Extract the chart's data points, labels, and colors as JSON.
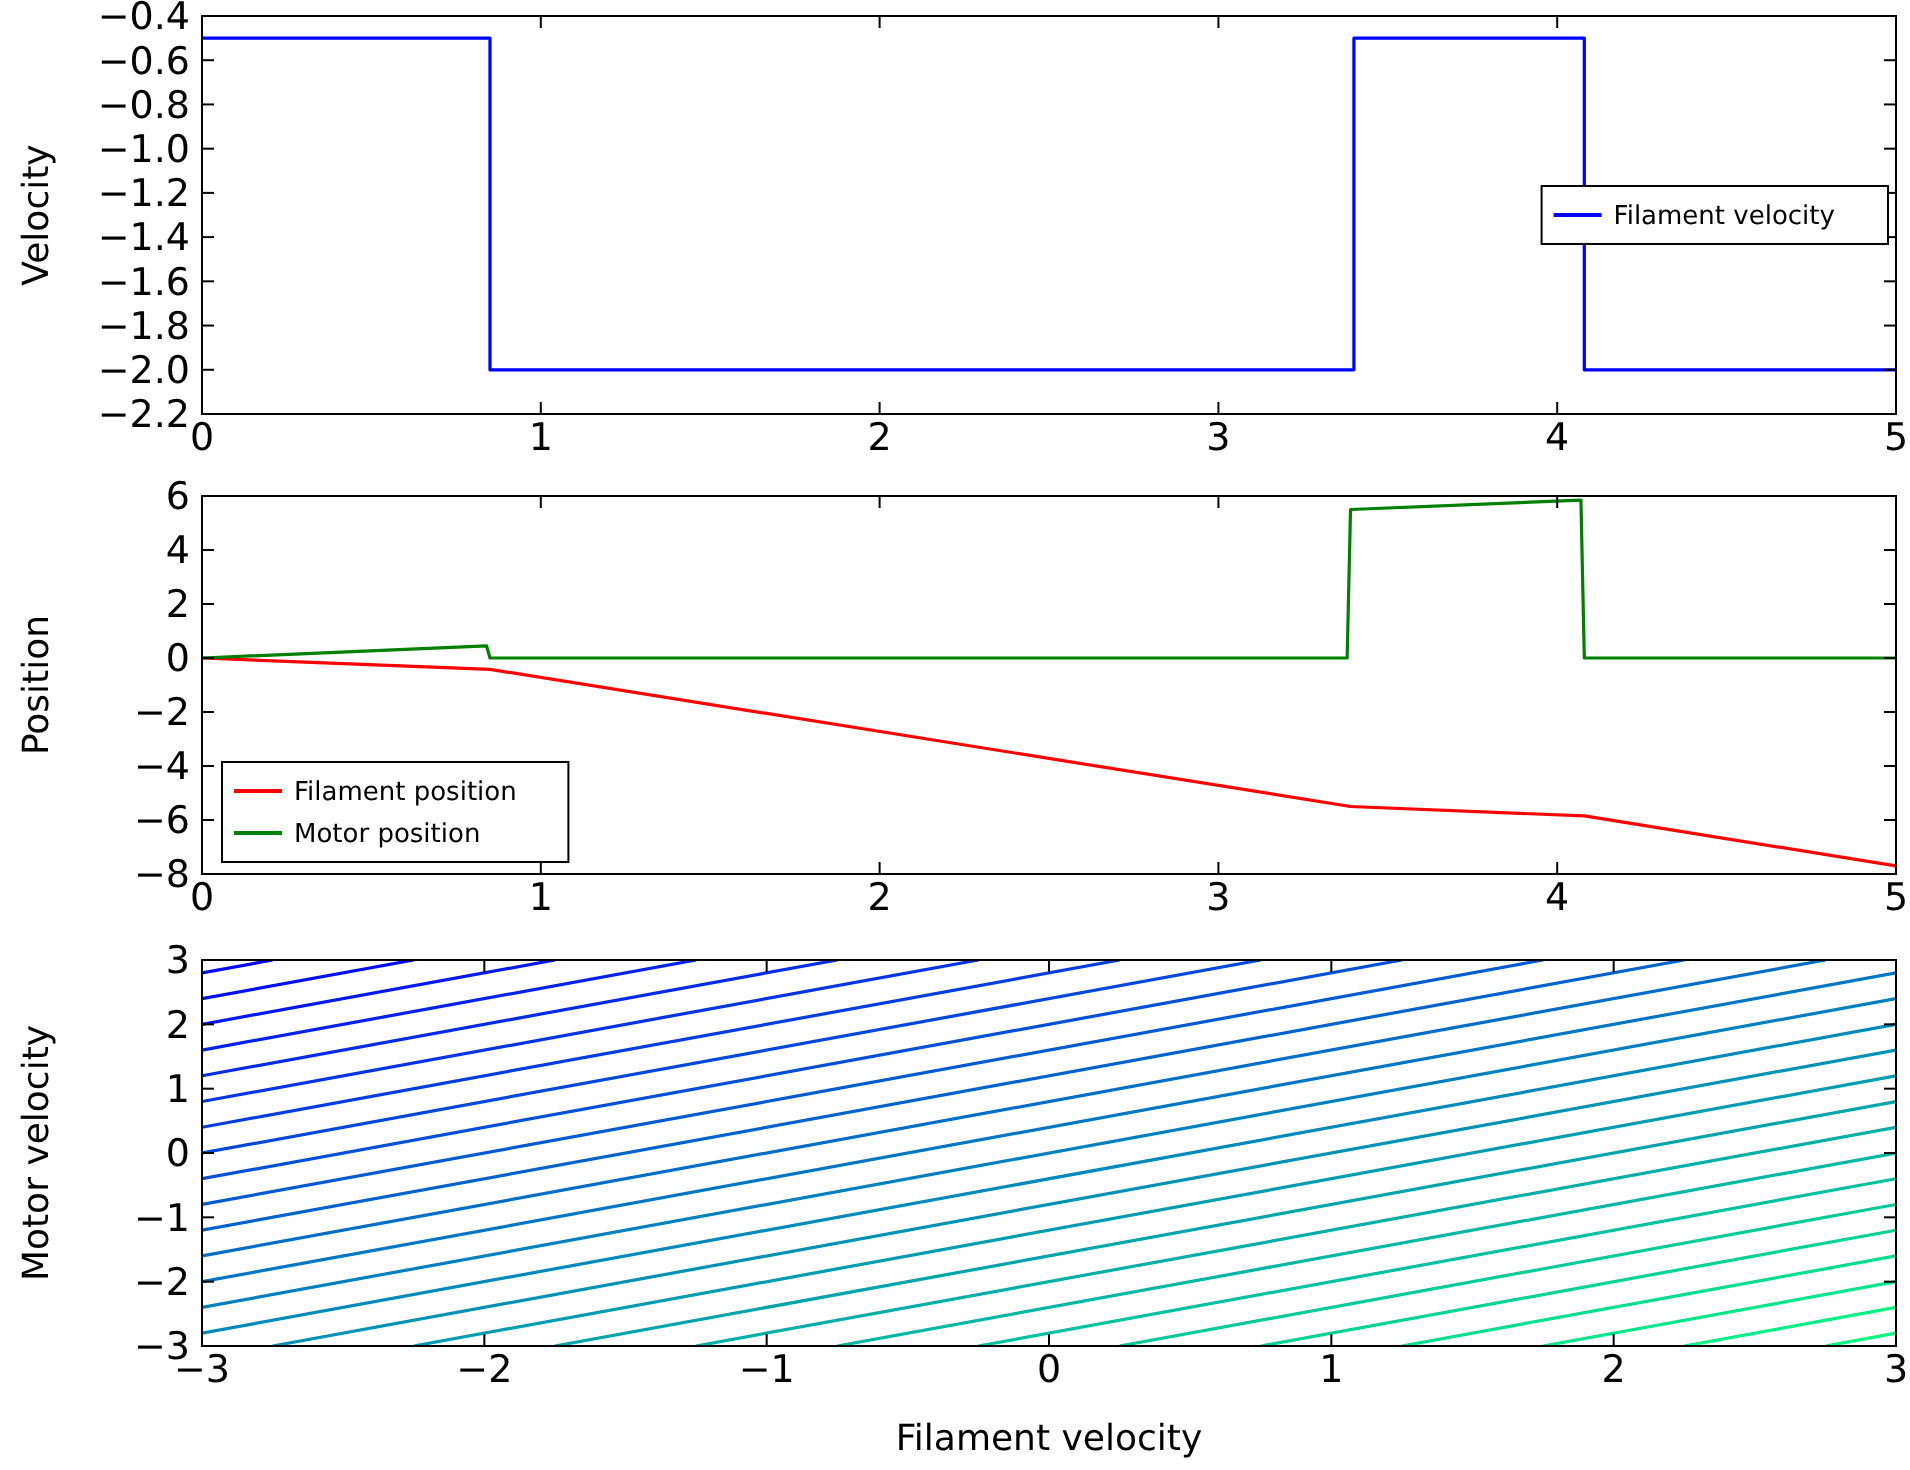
{
  "chart_data": [
    {
      "type": "step",
      "ylabel": "Velocity",
      "xlim": [
        0,
        5
      ],
      "xticks": [
        0,
        1,
        2,
        3,
        4,
        5
      ],
      "ylim": [
        -2.2,
        -0.4
      ],
      "yticks": [
        {
          "value": -0.4,
          "label": "−0.4"
        },
        {
          "value": -0.6,
          "label": "−0.6"
        },
        {
          "value": -0.8,
          "label": "−0.8"
        },
        {
          "value": -1.0,
          "label": "−1.0"
        },
        {
          "value": -1.2,
          "label": "−1.2"
        },
        {
          "value": -1.4,
          "label": "−1.4"
        },
        {
          "value": -1.6,
          "label": "−1.6"
        },
        {
          "value": -1.8,
          "label": "−1.8"
        },
        {
          "value": -2.0,
          "label": "−2.0"
        },
        {
          "value": -2.2,
          "label": "−2.2"
        }
      ],
      "legend": "right",
      "series": [
        {
          "name": "Filament velocity",
          "color": "#0000ff",
          "x": [
            0,
            0.85,
            3.4,
            4.08,
            5
          ],
          "values": [
            -0.5,
            -2.0,
            -0.5,
            -2.0,
            -2.0
          ]
        }
      ]
    },
    {
      "type": "line",
      "ylabel": "Position",
      "xlim": [
        0,
        5
      ],
      "xticks": [
        0,
        1,
        2,
        3,
        4,
        5
      ],
      "ylim": [
        -8,
        6
      ],
      "yticks": [
        {
          "value": -8,
          "label": "−8"
        },
        {
          "value": -6,
          "label": "−6"
        },
        {
          "value": -4,
          "label": "−4"
        },
        {
          "value": -2,
          "label": "−2"
        },
        0,
        2,
        4,
        6
      ],
      "legend": "bottom left",
      "series": [
        {
          "name": "Filament position",
          "color": "#ff0000",
          "x": [
            0,
            0.85,
            3.39,
            4.08,
            5
          ],
          "values": [
            0,
            -0.42,
            -5.5,
            -5.85,
            -7.7
          ]
        },
        {
          "name": "Motor position",
          "color": "#008000",
          "x": [
            0,
            0.84,
            0.85,
            3.38,
            3.39,
            4.07,
            4.08,
            5
          ],
          "values": [
            0,
            0.45,
            0,
            0,
            5.5,
            5.85,
            0,
            0
          ]
        }
      ]
    },
    {
      "type": "line",
      "xlabel": "Filament velocity",
      "ylabel": "Motor velocity",
      "xlim": [
        -3,
        3
      ],
      "xticks": [
        {
          "value": -3,
          "label": "−3"
        },
        {
          "value": -2,
          "label": "−2"
        },
        {
          "value": -1,
          "label": "−1"
        },
        0,
        1,
        2,
        3
      ],
      "ylim": [
        -3,
        3
      ],
      "yticks": [
        {
          "value": -3,
          "label": "−3"
        },
        {
          "value": -2,
          "label": "−2"
        },
        {
          "value": -1,
          "label": "−1"
        },
        0,
        1,
        2,
        3
      ],
      "legend": false,
      "series": [
        {
          "color": "#00fa82",
          "x": [
            2.75,
            3
          ],
          "values": [
            -3,
            -2.8
          ]
        },
        {
          "color": "#00f187",
          "x": [
            2.25,
            3
          ],
          "values": [
            -3,
            -2.4
          ]
        },
        {
          "color": "#00e78b",
          "x": [
            1.75,
            3
          ],
          "values": [
            -3,
            -2.0
          ]
        },
        {
          "color": "#00de90",
          "x": [
            1.25,
            3
          ],
          "values": [
            -3,
            -1.6
          ]
        },
        {
          "color": "#00d495",
          "x": [
            0.75,
            3
          ],
          "values": [
            -3,
            -1.2
          ]
        },
        {
          "color": "#00cb99",
          "x": [
            0.25,
            3
          ],
          "values": [
            -3,
            -0.8
          ]
        },
        {
          "color": "#00c29e",
          "x": [
            -0.25,
            3
          ],
          "values": [
            -3,
            -0.4
          ]
        },
        {
          "color": "#00b8a3",
          "x": [
            -0.75,
            3
          ],
          "values": [
            -3,
            0
          ]
        },
        {
          "color": "#00afa8",
          "x": [
            -1.25,
            3
          ],
          "values": [
            -3,
            0.4
          ]
        },
        {
          "color": "#00a5ac",
          "x": [
            -1.75,
            3
          ],
          "values": [
            -3,
            0.8
          ]
        },
        {
          "color": "#009cb1",
          "x": [
            -2.25,
            3
          ],
          "values": [
            -3,
            1.2
          ]
        },
        {
          "color": "#0092b6",
          "x": [
            -2.75,
            3
          ],
          "values": [
            -3,
            1.6
          ]
        },
        {
          "color": "#0089bb",
          "x": [
            -3,
            3
          ],
          "values": [
            -2.8,
            2.0
          ]
        },
        {
          "color": "#0080bf",
          "x": [
            -3,
            3
          ],
          "values": [
            -2.4,
            2.4
          ]
        },
        {
          "color": "#0076c4",
          "x": [
            -3,
            3
          ],
          "values": [
            -2.0,
            2.8
          ]
        },
        {
          "color": "#006dc9",
          "x": [
            -3,
            2.75
          ],
          "values": [
            -1.6,
            3
          ]
        },
        {
          "color": "#0063cd",
          "x": [
            -3,
            2.25
          ],
          "values": [
            -1.2,
            3
          ]
        },
        {
          "color": "#005ad2",
          "x": [
            -3,
            1.75
          ],
          "values": [
            -0.8,
            3
          ]
        },
        {
          "color": "#0050d7",
          "x": [
            -3,
            1.25
          ],
          "values": [
            -0.4,
            3
          ]
        },
        {
          "color": "#0047dc",
          "x": [
            -3,
            0.75
          ],
          "values": [
            0,
            3
          ]
        },
        {
          "color": "#003de0",
          "x": [
            -3,
            0.25
          ],
          "values": [
            0.4,
            3
          ]
        },
        {
          "color": "#0034e5",
          "x": [
            -3,
            -0.25
          ],
          "values": [
            0.8,
            3
          ]
        },
        {
          "color": "#002bea",
          "x": [
            -3,
            -0.75
          ],
          "values": [
            1.2,
            3
          ]
        },
        {
          "color": "#0021ee",
          "x": [
            -3,
            -1.25
          ],
          "values": [
            1.6,
            3
          ]
        },
        {
          "color": "#0018f3",
          "x": [
            -3,
            -1.75
          ],
          "values": [
            2.0,
            3
          ]
        },
        {
          "color": "#000ef8",
          "x": [
            -3,
            -2.25
          ],
          "values": [
            2.4,
            3
          ]
        },
        {
          "color": "#0005fd",
          "x": [
            -3,
            -2.75
          ],
          "values": [
            2.8,
            3
          ]
        }
      ]
    }
  ]
}
